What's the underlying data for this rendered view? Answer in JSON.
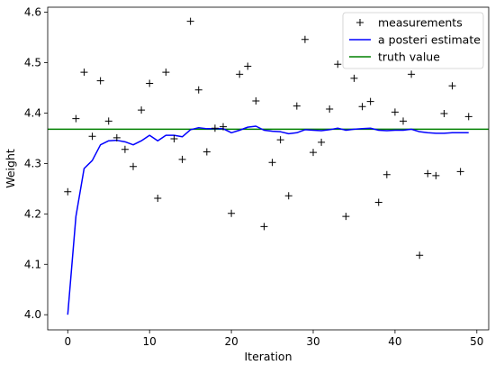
{
  "chart_data": {
    "type": "line",
    "title": "",
    "xlabel": "Iteration",
    "ylabel": "Weight",
    "xlim": [
      -2.45,
      51.45
    ],
    "ylim": [
      3.97,
      4.61
    ],
    "xticks": [
      0,
      10,
      20,
      30,
      40,
      50
    ],
    "yticks": [
      4.0,
      4.1,
      4.2,
      4.3,
      4.4,
      4.5,
      4.6
    ],
    "grid": false,
    "legend_position": "top-right",
    "truth_value": 4.368,
    "series": [
      {
        "name": "measurements",
        "kind": "scatter",
        "marker": "+",
        "color": "#000000",
        "x": [
          0,
          1,
          2,
          3,
          4,
          5,
          6,
          7,
          8,
          9,
          10,
          11,
          12,
          13,
          14,
          15,
          16,
          17,
          18,
          19,
          20,
          21,
          22,
          23,
          24,
          25,
          26,
          27,
          28,
          29,
          30,
          31,
          32,
          33,
          34,
          35,
          36,
          37,
          38,
          39,
          40,
          41,
          42,
          43,
          44,
          45,
          46,
          47,
          48,
          49
        ],
        "y": [
          4.244,
          4.389,
          4.481,
          4.354,
          4.464,
          4.384,
          4.351,
          4.328,
          4.294,
          4.406,
          4.459,
          4.231,
          4.481,
          4.349,
          4.308,
          4.582,
          4.446,
          4.323,
          4.37,
          4.373,
          4.201,
          4.477,
          4.493,
          4.424,
          4.175,
          4.302,
          4.347,
          4.236,
          4.414,
          4.546,
          4.322,
          4.342,
          4.408,
          4.497,
          4.195,
          4.469,
          4.413,
          4.423,
          4.223,
          4.278,
          4.402,
          4.384,
          4.477,
          4.118,
          4.28,
          4.276,
          4.399,
          4.454,
          4.284,
          4.393
        ]
      },
      {
        "name": "a posteri estimate",
        "kind": "line",
        "color": "#0000ff",
        "x": [
          0,
          1,
          2,
          3,
          4,
          5,
          6,
          7,
          8,
          9,
          10,
          11,
          12,
          13,
          14,
          15,
          16,
          17,
          18,
          19,
          20,
          21,
          22,
          23,
          24,
          25,
          26,
          27,
          28,
          29,
          30,
          31,
          32,
          33,
          34,
          35,
          36,
          37,
          38,
          39,
          40,
          41,
          42,
          43,
          44,
          45,
          46,
          47,
          48,
          49
        ],
        "y": [
          4.0,
          4.195,
          4.29,
          4.306,
          4.337,
          4.345,
          4.346,
          4.343,
          4.337,
          4.345,
          4.356,
          4.345,
          4.356,
          4.356,
          4.353,
          4.367,
          4.371,
          4.369,
          4.369,
          4.369,
          4.361,
          4.366,
          4.372,
          4.374,
          4.366,
          4.364,
          4.363,
          4.359,
          4.361,
          4.367,
          4.366,
          4.365,
          4.367,
          4.37,
          4.366,
          4.368,
          4.369,
          4.37,
          4.366,
          4.365,
          4.366,
          4.366,
          4.368,
          4.363,
          4.361,
          4.36,
          4.36,
          4.361,
          4.361,
          4.361
        ]
      },
      {
        "name": "truth value",
        "kind": "hline",
        "color": "#008000",
        "y": 4.368
      }
    ]
  }
}
